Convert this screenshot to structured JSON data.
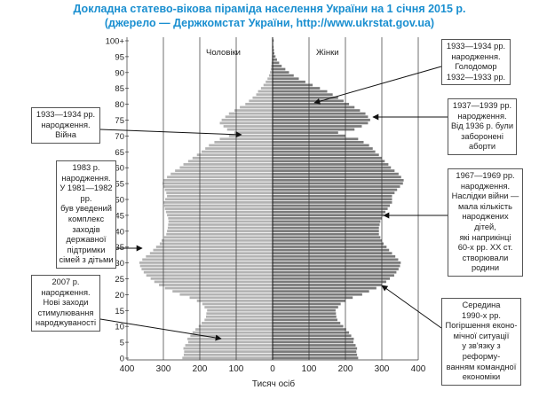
{
  "title_lines": [
    "Докладна статево-вікова піраміда населення України на 1 січня 2015 р.",
    "(джерело — Держкомстат України, http://www.ukrstat.gov.ua)"
  ],
  "colors": {
    "title": "#1a8fd0",
    "male_bar": "#b3b3b3",
    "female_bar": "#7a7a7a",
    "grid": "#333333"
  },
  "callouts": {
    "left_1933": [
      "1933—1934 рр.",
      "народження.",
      "Війна"
    ],
    "left_1983": [
      "1983 р.",
      "народження.",
      "У 1981—1982 рр.",
      "був уведений",
      "комплекс заходів",
      "державної",
      "підтримки",
      "сімей з дітьми"
    ],
    "left_2007": [
      "2007 р.",
      "народження.",
      "Нові заходи",
      "стимулювання",
      "народжуваності"
    ],
    "right_famine": [
      "1933—1934 рр.",
      "народження.",
      "Голодомор",
      "1932—1933 рр."
    ],
    "right_1937": [
      "1937—1939 рр.",
      "народження.",
      "Від 1936 р. були",
      "заборонені",
      "аборти"
    ],
    "right_1967": [
      "1967—1969 рр.",
      "народження.",
      "Наслідки війни —",
      "мала кількість",
      "народжених дітей,",
      "які наприкінці",
      "60-х рр. XX ст.",
      "створювали",
      "родини"
    ],
    "right_1990": [
      "Середина",
      "1990-х рр.",
      "Погіршення еконо-",
      "мічної ситуації",
      "у зв'язку з реформу-",
      "ванням командної",
      "економіки"
    ]
  },
  "chart_data": {
    "type": "bar",
    "orientation": "horizontal-pyramid",
    "xlabel": "Тисяч осіб",
    "ylim": [
      0,
      100
    ],
    "xlim": [
      -400,
      400
    ],
    "x_ticks": [
      "400",
      "300",
      "200",
      "100",
      "0",
      "100",
      "200",
      "300",
      "400"
    ],
    "y_ticks": [
      "0",
      "5",
      "10",
      "15",
      "20",
      "25",
      "30",
      "35",
      "40",
      "45",
      "50",
      "55",
      "60",
      "65",
      "70",
      "75",
      "80",
      "85",
      "90",
      "95",
      "100+"
    ],
    "series": [
      {
        "name": "Чоловіки",
        "side": "left",
        "values": [
          248,
          244,
          243,
          245,
          240,
          232,
          234,
          226,
          220,
          212,
          203,
          195,
          187,
          183,
          182,
          180,
          187,
          193,
          208,
          228,
          255,
          275,
          296,
          312,
          325,
          335,
          347,
          354,
          360,
          364,
          366,
          358,
          348,
          337,
          328,
          320,
          310,
          305,
          298,
          292,
          290,
          288,
          287,
          286,
          287,
          290,
          293,
          296,
          298,
          300,
          295,
          290,
          292,
          296,
          300,
          302,
          300,
          290,
          280,
          268,
          255,
          245,
          232,
          220,
          208,
          195,
          185,
          175,
          160,
          145,
          120,
          105,
          125,
          135,
          145,
          140,
          130,
          120,
          105,
          90,
          75,
          65,
          55,
          45,
          40,
          32,
          25,
          19,
          14,
          10,
          7,
          5,
          4,
          3,
          2,
          1.5,
          1,
          0.8,
          0.6,
          0.4,
          1
        ]
      },
      {
        "name": "Жінки",
        "side": "right",
        "values": [
          235,
          232,
          230,
          232,
          228,
          222,
          223,
          216,
          210,
          202,
          194,
          186,
          178,
          175,
          174,
          173,
          180,
          187,
          200,
          220,
          246,
          265,
          285,
          300,
          312,
          322,
          334,
          340,
          346,
          350,
          352,
          345,
          337,
          328,
          320,
          313,
          305,
          300,
          296,
          292,
          292,
          292,
          294,
          296,
          300,
          305,
          310,
          316,
          322,
          328,
          328,
          328,
          335,
          342,
          350,
          358,
          360,
          353,
          346,
          335,
          325,
          318,
          308,
          300,
          292,
          282,
          275,
          265,
          250,
          235,
          200,
          180,
          225,
          245,
          262,
          268,
          262,
          255,
          240,
          225,
          210,
          195,
          180,
          165,
          150,
          130,
          110,
          90,
          72,
          58,
          45,
          35,
          25,
          18,
          12,
          8,
          5,
          3.5,
          2.5,
          1.5,
          3
        ]
      }
    ]
  }
}
